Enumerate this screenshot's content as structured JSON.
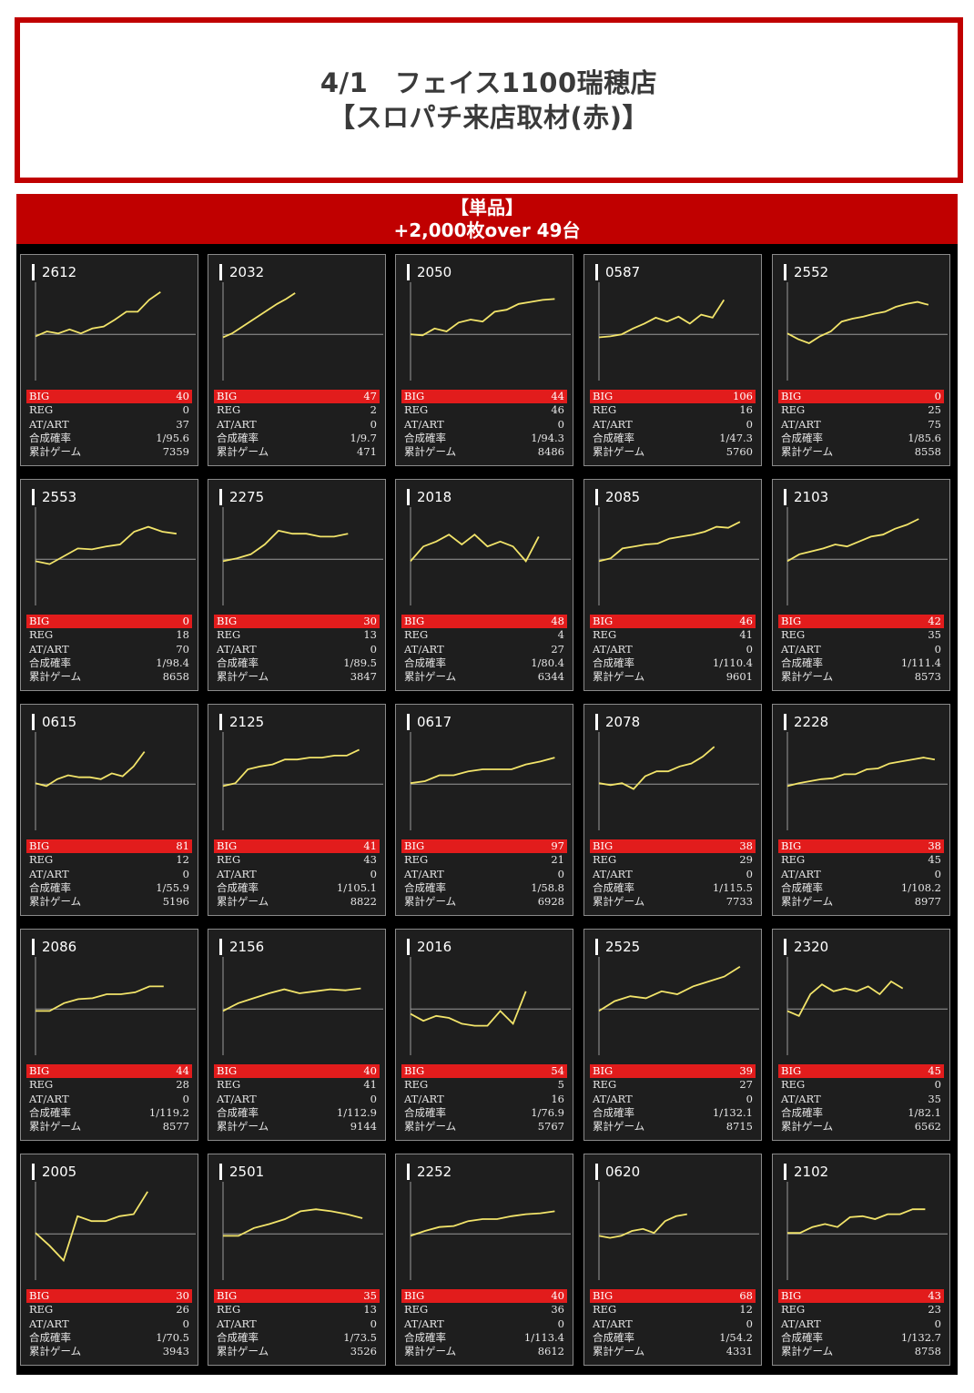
{
  "header": {
    "title_line1": "4/1　フェイス1100瑞穂店",
    "title_line2": "【スロパチ来店取材(赤)】"
  },
  "banner": {
    "line1": "【単品】",
    "line2": "+2,000枚over 49台"
  },
  "labels": {
    "big": "BIG",
    "reg": "REG",
    "art": "AT/ART",
    "prob": "合成確率",
    "games": "累計ゲーム"
  },
  "colors": {
    "accent_red": "#c00000",
    "stat_bar_red": "#e21c1c",
    "line_yellow": "#f2e46a",
    "card_bg": "#1e1e1e"
  },
  "machines": [
    {
      "no": "2612",
      "big": "40",
      "reg": "0",
      "art": "37",
      "prob": "1/95.6",
      "games": "7359"
    },
    {
      "no": "2032",
      "big": "47",
      "reg": "2",
      "art": "0",
      "prob": "1/9.7",
      "games": "471"
    },
    {
      "no": "2050",
      "big": "44",
      "reg": "46",
      "art": "0",
      "prob": "1/94.3",
      "games": "8486"
    },
    {
      "no": "0587",
      "big": "106",
      "reg": "16",
      "art": "0",
      "prob": "1/47.3",
      "games": "5760"
    },
    {
      "no": "2552",
      "big": "0",
      "reg": "25",
      "art": "75",
      "prob": "1/85.6",
      "games": "8558"
    },
    {
      "no": "2553",
      "big": "0",
      "reg": "18",
      "art": "70",
      "prob": "1/98.4",
      "games": "8658"
    },
    {
      "no": "2275",
      "big": "30",
      "reg": "13",
      "art": "0",
      "prob": "1/89.5",
      "games": "3847"
    },
    {
      "no": "2018",
      "big": "48",
      "reg": "4",
      "art": "27",
      "prob": "1/80.4",
      "games": "6344"
    },
    {
      "no": "2085",
      "big": "46",
      "reg": "41",
      "art": "0",
      "prob": "1/110.4",
      "games": "9601"
    },
    {
      "no": "2103",
      "big": "42",
      "reg": "35",
      "art": "0",
      "prob": "1/111.4",
      "games": "8573"
    },
    {
      "no": "0615",
      "big": "81",
      "reg": "12",
      "art": "0",
      "prob": "1/55.9",
      "games": "5196"
    },
    {
      "no": "2125",
      "big": "41",
      "reg": "43",
      "art": "0",
      "prob": "1/105.1",
      "games": "8822"
    },
    {
      "no": "0617",
      "big": "97",
      "reg": "21",
      "art": "0",
      "prob": "1/58.8",
      "games": "6928"
    },
    {
      "no": "2078",
      "big": "38",
      "reg": "29",
      "art": "0",
      "prob": "1/115.5",
      "games": "7733"
    },
    {
      "no": "2228",
      "big": "38",
      "reg": "45",
      "art": "0",
      "prob": "1/108.2",
      "games": "8977"
    },
    {
      "no": "2086",
      "big": "44",
      "reg": "28",
      "art": "0",
      "prob": "1/119.2",
      "games": "8577"
    },
    {
      "no": "2156",
      "big": "40",
      "reg": "41",
      "art": "0",
      "prob": "1/112.9",
      "games": "9144"
    },
    {
      "no": "2016",
      "big": "54",
      "reg": "5",
      "art": "16",
      "prob": "1/76.9",
      "games": "5767"
    },
    {
      "no": "2525",
      "big": "39",
      "reg": "27",
      "art": "0",
      "prob": "1/132.1",
      "games": "8715"
    },
    {
      "no": "2320",
      "big": "45",
      "reg": "0",
      "art": "35",
      "prob": "1/82.1",
      "games": "6562"
    },
    {
      "no": "2005",
      "big": "30",
      "reg": "26",
      "art": "0",
      "prob": "1/70.5",
      "games": "3943"
    },
    {
      "no": "2501",
      "big": "35",
      "reg": "13",
      "art": "0",
      "prob": "1/73.5",
      "games": "3526"
    },
    {
      "no": "2252",
      "big": "40",
      "reg": "36",
      "art": "0",
      "prob": "1/113.4",
      "games": "8612"
    },
    {
      "no": "0620",
      "big": "68",
      "reg": "12",
      "art": "0",
      "prob": "1/54.2",
      "games": "4331"
    },
    {
      "no": "2102",
      "big": "43",
      "reg": "23",
      "art": "0",
      "prob": "1/132.7",
      "games": "8758"
    }
  ]
}
